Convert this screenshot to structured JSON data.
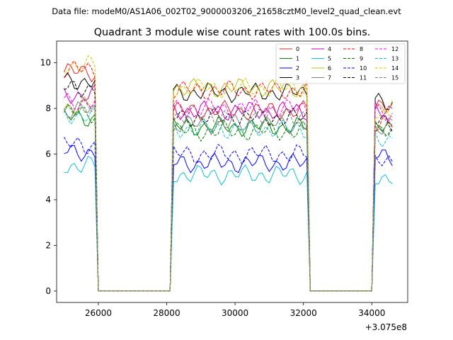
{
  "chart_data": {
    "type": "line",
    "suptitle": "Data file: modeM0/AS1A06_002T02_9000003206_21658cztM0_level2_quad_clean.evt",
    "title": "Quadrant 3 module wise count rates with 100.0s bins.",
    "xlabel": "",
    "ylabel": "",
    "offset_label": "+3.075e8",
    "xlim": [
      24780,
      35050
    ],
    "ylim": [
      -0.5,
      10.95
    ],
    "xticks": [
      26000,
      28000,
      30000,
      32000,
      34000
    ],
    "xtick_labels": [
      "26000",
      "28000",
      "30000",
      "32000",
      "34000"
    ],
    "yticks": [
      0,
      2,
      4,
      6,
      8,
      10
    ],
    "ytick_labels": [
      "0",
      "2",
      "4",
      "6",
      "8",
      "10"
    ],
    "legend_position": "top-right",
    "segments": [
      {
        "start": 25000,
        "end": 25900
      },
      {
        "start": 28200,
        "end": 32100
      },
      {
        "start": 34100,
        "end": 34600
      }
    ],
    "series": [
      {
        "name": "0",
        "color": "#d62728",
        "dash": "solid",
        "levels": [
          9.6,
          7.9,
          8.0
        ]
      },
      {
        "name": "1",
        "color": "#008000",
        "dash": "solid",
        "levels": [
          7.6,
          7.2,
          7.1
        ]
      },
      {
        "name": "2",
        "color": "#0000ff",
        "dash": "solid",
        "levels": [
          6.1,
          5.6,
          5.9
        ]
      },
      {
        "name": "3",
        "color": "#000000",
        "dash": "solid",
        "levels": [
          9.2,
          8.7,
          8.3
        ]
      },
      {
        "name": "4",
        "color": "#bf00bf",
        "dash": "solid",
        "levels": [
          8.6,
          7.9,
          8.0
        ]
      },
      {
        "name": "5",
        "color": "#17becf",
        "dash": "solid",
        "levels": [
          5.5,
          5.1,
          5.0
        ]
      },
      {
        "name": "6",
        "color": "#bcbd22",
        "dash": "solid",
        "levels": [
          8.1,
          8.9,
          8.1
        ]
      },
      {
        "name": "7",
        "color": "#7f7f7f",
        "dash": "solid",
        "levels": [
          7.9,
          7.3,
          7.2
        ]
      },
      {
        "name": "8",
        "color": "#ff0000",
        "dash": "dashed",
        "levels": [
          9.7,
          8.8,
          7.3
        ]
      },
      {
        "name": "9",
        "color": "#008000",
        "dash": "dashed",
        "levels": [
          7.8,
          7.0,
          6.9
        ]
      },
      {
        "name": "10",
        "color": "#0000ff",
        "dash": "dashed",
        "levels": [
          6.4,
          6.0,
          5.6
        ]
      },
      {
        "name": "11",
        "color": "#000000",
        "dash": "dashed",
        "levels": [
          8.9,
          7.6,
          7.4
        ]
      },
      {
        "name": "12",
        "color": "#ff00ff",
        "dash": "dashed",
        "levels": [
          8.3,
          8.0,
          7.8
        ]
      },
      {
        "name": "13",
        "color": "#17becf",
        "dash": "dashed",
        "levels": [
          7.7,
          7.1,
          6.7
        ]
      },
      {
        "name": "14",
        "color": "#cccc00",
        "dash": "dashed",
        "levels": [
          9.9,
          8.9,
          7.9
        ]
      },
      {
        "name": "15",
        "color": "#7f7f7f",
        "dash": "dashed",
        "levels": [
          8.0,
          7.7,
          7.1
        ]
      }
    ]
  }
}
